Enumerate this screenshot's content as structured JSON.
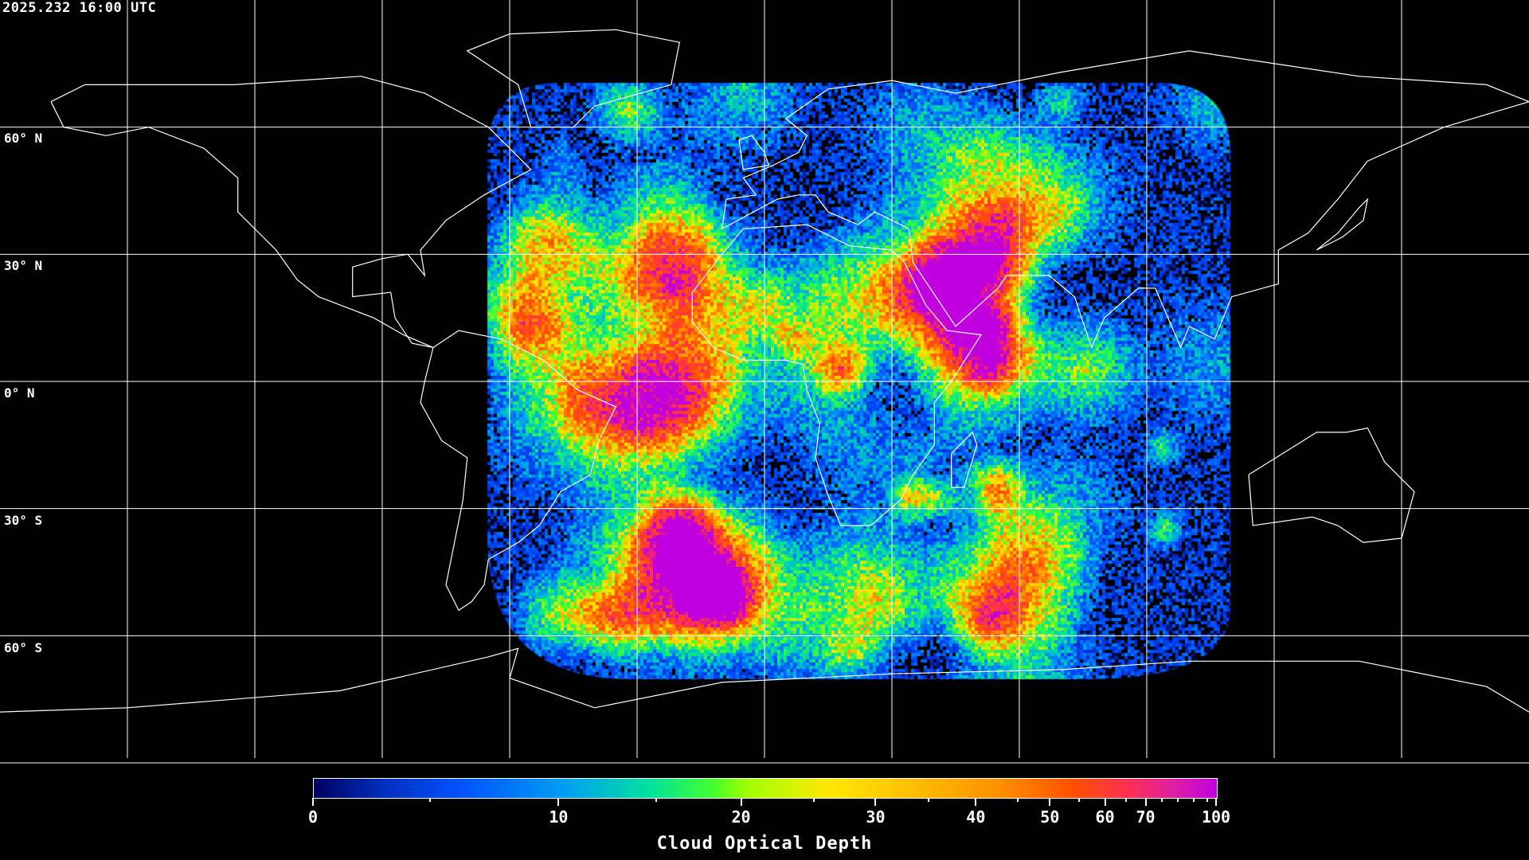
{
  "header": {
    "timestamp": "2025.232 16:00 UTC"
  },
  "map": {
    "projection": "equirectangular",
    "grid_spacing_deg": 30,
    "lat_labels": [
      "60° N",
      "30° N",
      "0° N",
      "30° S",
      "60° S"
    ],
    "grid_color": "#ffffff",
    "coastline_color": "#ffffff",
    "background": "#000000",
    "imagery": "satellite cloud optical depth, full-disk region over Atlantic/Africa/Indian Ocean"
  },
  "colorbar": {
    "title": "Cloud Optical Depth",
    "ticks": [
      "0",
      "10",
      "20",
      "30",
      "40",
      "50",
      "60",
      "70",
      "100"
    ],
    "range": [
      0,
      100
    ],
    "colormap": [
      "#000060",
      "#0050ff",
      "#00a0f0",
      "#00e0a0",
      "#40ff30",
      "#ffe800",
      "#ff9000",
      "#ff5000",
      "#ff3050",
      "#c000e0"
    ]
  }
}
